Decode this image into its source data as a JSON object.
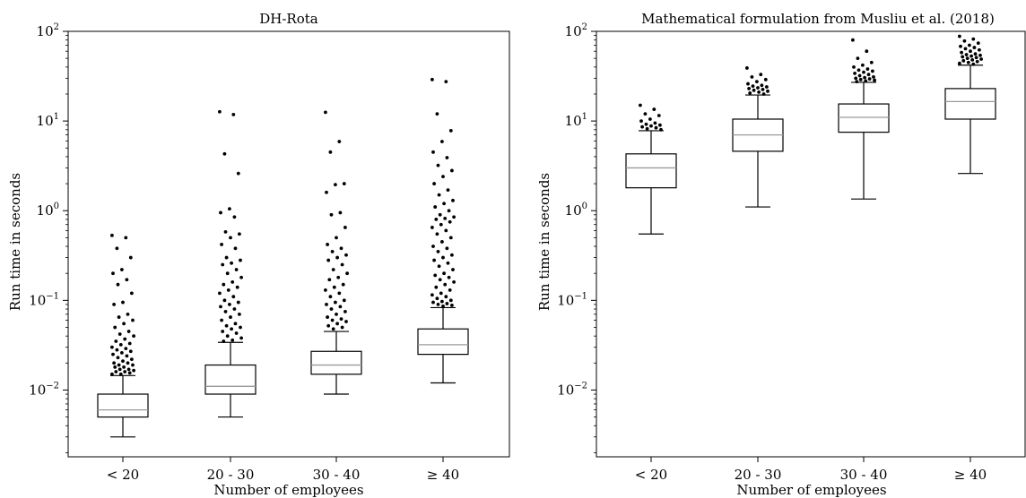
{
  "chart_data": [
    {
      "type": "box",
      "title": "DH-Rota",
      "xlabel": "Number of employees",
      "ylabel": "Run time in seconds",
      "yscale": "log",
      "ylim": [
        0.0018,
        100
      ],
      "yticks": [
        {
          "value": 0.01,
          "base": "10",
          "exp": "−2"
        },
        {
          "value": 0.1,
          "base": "10",
          "exp": "−1"
        },
        {
          "value": 1,
          "base": "10",
          "exp": "0"
        },
        {
          "value": 10,
          "base": "10",
          "exp": "1"
        },
        {
          "value": 100,
          "base": "10",
          "exp": "2"
        }
      ],
      "categories": [
        "< 20",
        "20 - 30",
        "30 - 40",
        "≥ 40"
      ],
      "boxes": [
        {
          "whislo": 0.003,
          "q1": 0.005,
          "med": 0.006,
          "q3": 0.009,
          "whishi": 0.0145,
          "fliers": [
            0.53,
            0.5,
            0.38,
            0.3,
            0.22,
            0.2,
            0.17,
            0.15,
            0.12,
            0.095,
            0.09,
            0.07,
            0.065,
            0.06,
            0.055,
            0.05,
            0.045,
            0.042,
            0.04,
            0.037,
            0.035,
            0.033,
            0.032,
            0.03,
            0.029,
            0.028,
            0.027,
            0.026,
            0.025,
            0.024,
            0.023,
            0.022,
            0.021,
            0.02,
            0.02,
            0.019,
            0.019,
            0.018,
            0.018,
            0.017,
            0.017,
            0.0165,
            0.016,
            0.016,
            0.0155,
            0.015,
            0.015
          ]
        },
        {
          "whislo": 0.005,
          "q1": 0.009,
          "med": 0.011,
          "q3": 0.019,
          "whishi": 0.034,
          "fliers": [
            12.7,
            11.8,
            4.3,
            2.6,
            1.05,
            0.95,
            0.85,
            0.58,
            0.55,
            0.5,
            0.42,
            0.38,
            0.3,
            0.28,
            0.26,
            0.25,
            0.22,
            0.2,
            0.18,
            0.16,
            0.15,
            0.14,
            0.13,
            0.12,
            0.11,
            0.1,
            0.095,
            0.09,
            0.085,
            0.08,
            0.075,
            0.07,
            0.065,
            0.06,
            0.055,
            0.052,
            0.05,
            0.048,
            0.045,
            0.043,
            0.04,
            0.038,
            0.036,
            0.035
          ]
        },
        {
          "whislo": 0.009,
          "q1": 0.015,
          "med": 0.019,
          "q3": 0.027,
          "whishi": 0.045,
          "fliers": [
            12.5,
            5.9,
            4.5,
            2.0,
            1.95,
            1.6,
            0.95,
            0.9,
            0.65,
            0.5,
            0.42,
            0.38,
            0.35,
            0.32,
            0.3,
            0.28,
            0.25,
            0.22,
            0.2,
            0.18,
            0.17,
            0.15,
            0.14,
            0.13,
            0.12,
            0.11,
            0.1,
            0.095,
            0.09,
            0.085,
            0.08,
            0.075,
            0.07,
            0.065,
            0.062,
            0.06,
            0.058,
            0.055,
            0.052,
            0.05,
            0.048
          ]
        },
        {
          "whislo": 0.012,
          "q1": 0.025,
          "med": 0.032,
          "q3": 0.048,
          "whishi": 0.083,
          "fliers": [
            29,
            27.5,
            12,
            7.8,
            5.9,
            4.5,
            3.9,
            3.2,
            2.8,
            2.4,
            2.0,
            1.7,
            1.5,
            1.3,
            1.2,
            1.1,
            1.0,
            0.9,
            0.85,
            0.82,
            0.8,
            0.75,
            0.7,
            0.65,
            0.6,
            0.55,
            0.5,
            0.45,
            0.4,
            0.38,
            0.35,
            0.32,
            0.3,
            0.28,
            0.26,
            0.24,
            0.22,
            0.2,
            0.19,
            0.18,
            0.17,
            0.16,
            0.15,
            0.14,
            0.13,
            0.12,
            0.115,
            0.11,
            0.105,
            0.1,
            0.097,
            0.095,
            0.092,
            0.09,
            0.088,
            0.086
          ]
        }
      ]
    },
    {
      "type": "box",
      "title": "Mathematical formulation from Musliu et al. (2018)",
      "xlabel": "Number of employees",
      "ylabel": "Run time in seconds",
      "yscale": "log",
      "ylim": [
        0.0018,
        100
      ],
      "yticks": [
        {
          "value": 0.01,
          "base": "10",
          "exp": "−2"
        },
        {
          "value": 0.1,
          "base": "10",
          "exp": "−1"
        },
        {
          "value": 1,
          "base": "10",
          "exp": "0"
        },
        {
          "value": 10,
          "base": "10",
          "exp": "1"
        },
        {
          "value": 100,
          "base": "10",
          "exp": "2"
        }
      ],
      "categories": [
        "< 20",
        "20 - 30",
        "30 - 40",
        "≥ 40"
      ],
      "boxes": [
        {
          "whislo": 0.55,
          "q1": 1.8,
          "med": 3.0,
          "q3": 4.3,
          "whishi": 7.8,
          "fliers": [
            15,
            13.5,
            12,
            11.5,
            10.5,
            10,
            9.5,
            9.2,
            9.0,
            8.8,
            8.6,
            8.4,
            8.2,
            8.0
          ]
        },
        {
          "whislo": 1.1,
          "q1": 4.6,
          "med": 7.0,
          "q3": 10.5,
          "whishi": 19.5,
          "fliers": [
            39,
            33,
            31,
            29,
            27.5,
            26,
            25,
            24.5,
            24,
            23.5,
            23,
            22.5,
            22,
            21.5,
            21,
            20.5,
            20
          ]
        },
        {
          "whislo": 1.35,
          "q1": 7.5,
          "med": 11,
          "q3": 15.5,
          "whishi": 27,
          "fliers": [
            80,
            60,
            50,
            45,
            42,
            40,
            38,
            37,
            36,
            35,
            34,
            33,
            32,
            31,
            30.5,
            30,
            29.5,
            29,
            28.5,
            28,
            27.5
          ]
        },
        {
          "whislo": 2.6,
          "q1": 10.5,
          "med": 16.5,
          "q3": 23,
          "whishi": 42,
          "fliers": [
            88,
            82,
            78,
            74,
            70,
            68,
            66,
            64,
            62,
            60,
            58,
            56,
            55,
            54,
            53,
            52,
            51,
            50,
            49,
            48,
            47,
            46,
            45,
            44,
            43
          ]
        }
      ]
    }
  ]
}
